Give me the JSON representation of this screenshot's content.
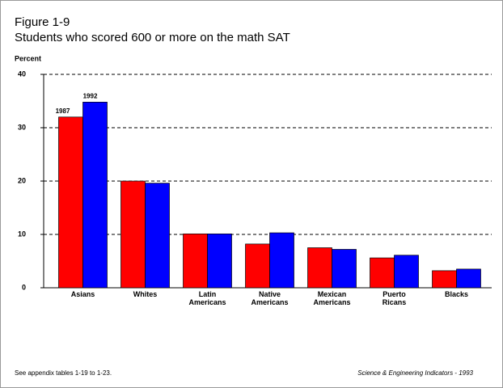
{
  "chart_data": {
    "type": "bar",
    "figure_label": "Figure 1-9",
    "title": "Students who scored 600 or more on the math SAT",
    "y_label": "Percent",
    "categories": [
      "Asians",
      "Whites",
      "Latin\nAmericans",
      "Native\nAmericans",
      "Mexican\nAmericans",
      "Puerto\nRicans",
      "Blacks"
    ],
    "series": [
      {
        "name": "1987",
        "color": "#ff0000",
        "values": [
          32,
          20,
          10.1,
          8.2,
          7.5,
          5.6,
          3.2
        ]
      },
      {
        "name": "1992",
        "color": "#0000ff",
        "values": [
          34.8,
          19.6,
          10.1,
          10.3,
          7.2,
          6.1,
          3.5
        ]
      }
    ],
    "ylim": [
      0,
      40
    ],
    "yticks": [
      0,
      10,
      20,
      30,
      40
    ],
    "grid": true,
    "note": "See appendix tables 1-19 to 1-23.",
    "source": "Science & Engineering Indicators - 1993"
  }
}
